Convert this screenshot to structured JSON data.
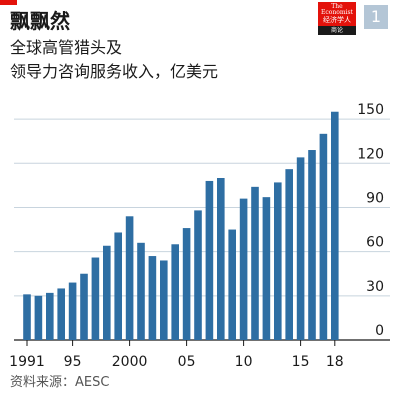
{
  "header": {
    "title": "飘飘然",
    "subtitle_line1": "全球高管猎头及",
    "subtitle_line2": "领导力咨询服务收入，亿美元",
    "chart_number": "1"
  },
  "logo": {
    "text_en": "The Economist",
    "text_zh": "经济学人",
    "text_zh2": "商论",
    "color": "#e3120b"
  },
  "source": "资料来源：AESC",
  "chart_data": {
    "type": "bar",
    "title": "全球高管猎头及领导力咨询服务收入，亿美元",
    "x": [
      1991,
      1992,
      1993,
      1994,
      1995,
      1996,
      1997,
      1998,
      1999,
      2000,
      2001,
      2002,
      2003,
      2004,
      2005,
      2006,
      2007,
      2008,
      2009,
      2010,
      2011,
      2012,
      2013,
      2014,
      2015,
      2016,
      2017,
      2018
    ],
    "values": [
      31,
      30,
      32,
      35,
      39,
      45,
      56,
      64,
      73,
      84,
      66,
      57,
      54,
      65,
      76,
      88,
      108,
      110,
      75,
      96,
      104,
      97,
      107,
      116,
      124,
      129,
      140,
      155
    ],
    "ylim": [
      0,
      165
    ],
    "yticks": [
      0,
      30,
      60,
      90,
      120,
      150
    ],
    "yaxis_position": "right",
    "xtick_labels": [
      {
        "year": 1991,
        "label": "1991"
      },
      {
        "year": 1995,
        "label": "95"
      },
      {
        "year": 2000,
        "label": "2000"
      },
      {
        "year": 2005,
        "label": "05"
      },
      {
        "year": 2010,
        "label": "10"
      },
      {
        "year": 2015,
        "label": "15"
      },
      {
        "year": 2018,
        "label": "18"
      }
    ],
    "grid": true,
    "bar_color": "#2e6ea3"
  }
}
